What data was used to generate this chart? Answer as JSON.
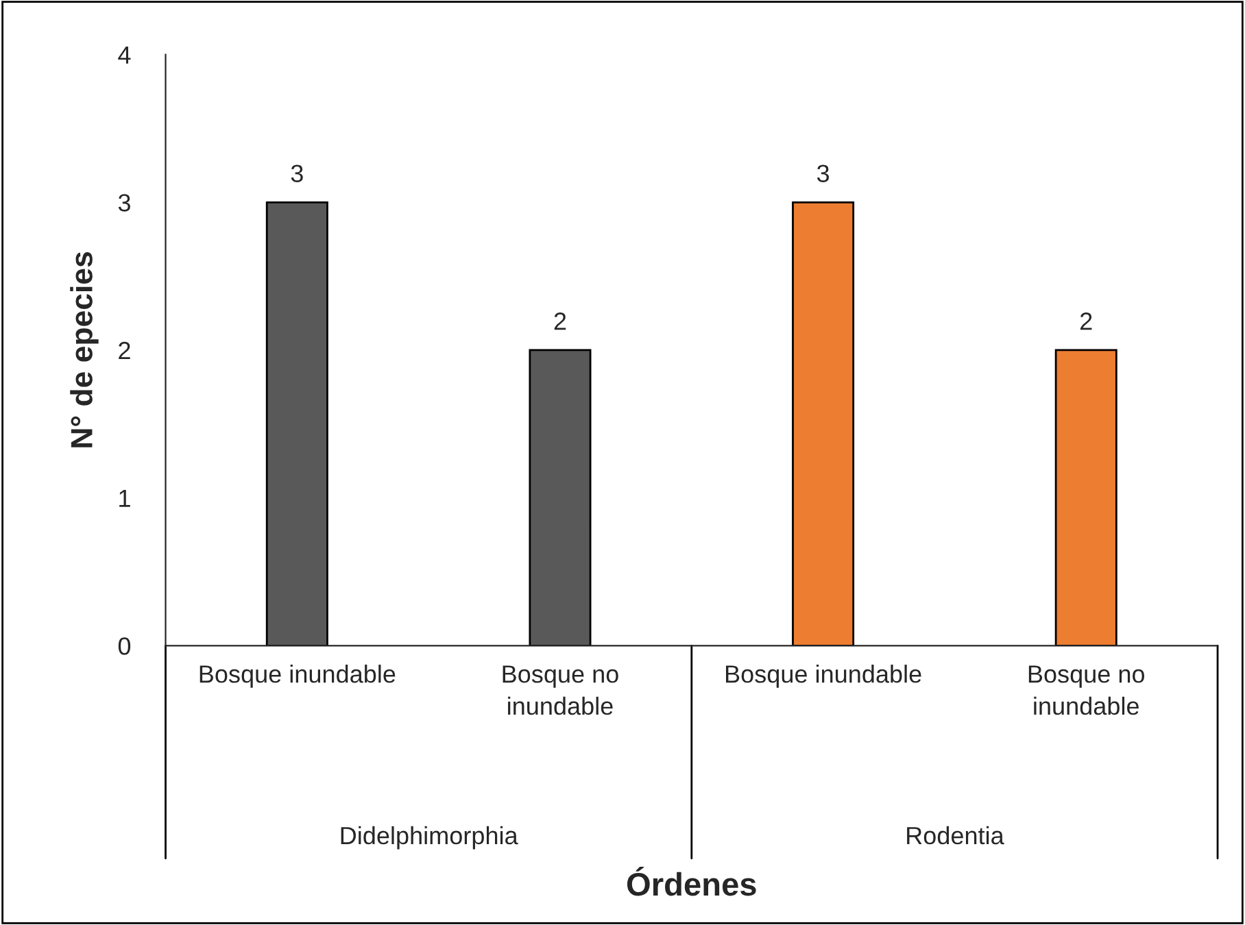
{
  "chart_data": {
    "type": "bar",
    "categories": [
      "Bosque inundable",
      "Bosque no\ninundable",
      "Bosque inundable",
      "Bosque no\ninundable"
    ],
    "values": [
      3,
      2,
      3,
      2
    ],
    "colors": [
      "#595959",
      "#595959",
      "#ed7d31",
      "#ed7d31"
    ],
    "xlabel": "Órdenes",
    "ylabel": "N° de epecies",
    "annotations": [
      "Didelphimorphia",
      "Rodentia"
    ],
    "ylim": [
      0,
      4
    ],
    "yticks": [
      0,
      1,
      2,
      3,
      4
    ],
    "data_labels": true,
    "grid": false,
    "legend": false
  }
}
